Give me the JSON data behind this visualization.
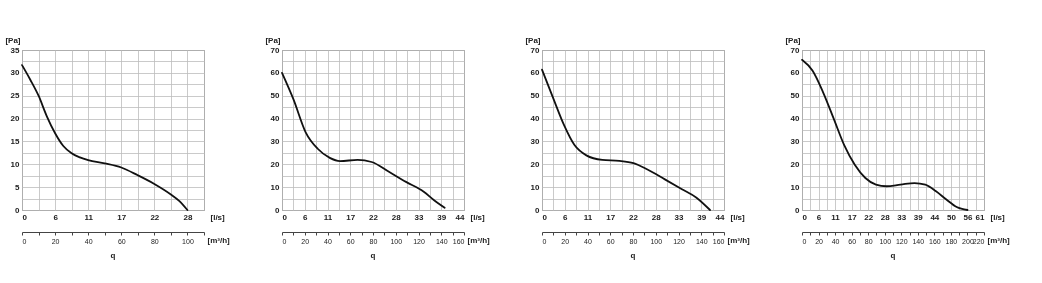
{
  "chart_data": [
    {
      "type": "line",
      "xlabel": "[l/s]",
      "x2label": "[m³/h]",
      "ylabel": "[Pa]",
      "annotations": [
        "q"
      ],
      "grid": true,
      "x": [
        0,
        1.39,
        2.78,
        4.17,
        5.56,
        6.94,
        8.33,
        9.72,
        11.11,
        13.89,
        16.67,
        19.44,
        22.22,
        25,
        26.39,
        27.78
      ],
      "series": [
        {
          "color": "#111111",
          "values": [
            31.7,
            28.5,
            25,
            20.5,
            16.8,
            14,
            12.4,
            11.5,
            10.9,
            10.2,
            9.3,
            7.6,
            5.7,
            3.4,
            2,
            0
          ]
        }
      ],
      "xlim": [
        0,
        30.56
      ],
      "xticks": [
        {
          "value": 0,
          "label": "0"
        },
        {
          "value": 2.78,
          "label": null
        },
        {
          "value": 5.56,
          "label": "6"
        },
        {
          "value": 8.33,
          "label": null
        },
        {
          "value": 11.11,
          "label": "11"
        },
        {
          "value": 13.89,
          "label": null
        },
        {
          "value": 16.67,
          "label": "17"
        },
        {
          "value": 19.44,
          "label": null
        },
        {
          "value": 22.22,
          "label": "22"
        },
        {
          "value": 25,
          "label": null
        },
        {
          "value": 27.78,
          "label": "28"
        },
        {
          "value": 30.56,
          "label": null
        }
      ],
      "x2lim": [
        0,
        110
      ],
      "x2ticks": [
        0,
        {
          "value": 10,
          "label": null
        },
        20,
        {
          "value": 30,
          "label": null
        },
        40,
        {
          "value": 50,
          "label": null
        },
        60,
        {
          "value": 70,
          "label": null
        },
        80,
        {
          "value": 90,
          "label": null
        },
        100,
        {
          "value": 110,
          "label": null
        }
      ],
      "ylim": [
        0,
        35
      ],
      "yticks": [
        {
          "value": 0,
          "label": "0"
        },
        {
          "value": 2.5,
          "label": null
        },
        5,
        {
          "value": 7.5,
          "label": null
        },
        10,
        {
          "value": 12.5,
          "label": null
        },
        15,
        {
          "value": 17.5,
          "label": null
        },
        20,
        {
          "value": 22.5,
          "label": null
        },
        25,
        {
          "value": 27.5,
          "label": null
        },
        30,
        {
          "value": 32.5,
          "label": null
        },
        35
      ]
    },
    {
      "type": "line",
      "xlabel": "[l/s]",
      "x2label": "[m³/h]",
      "ylabel": "[Pa]",
      "annotations": [
        "q"
      ],
      "grid": true,
      "x": [
        0,
        2.78,
        5.78,
        8.72,
        11.67,
        14.17,
        18.47,
        21.89,
        26.11,
        30.28,
        34.61,
        37.14,
        39.72
      ],
      "series": [
        {
          "color": "#111111",
          "values": [
            60,
            48.5,
            34,
            26.8,
            22.8,
            21.4,
            21.9,
            21,
            16.7,
            12.3,
            8,
            4.3,
            1
          ]
        }
      ],
      "xlim": [
        0,
        44.44
      ],
      "xticks": [
        {
          "value": 0,
          "label": "0"
        },
        {
          "value": 2.78,
          "label": null
        },
        {
          "value": 5.56,
          "label": "6"
        },
        {
          "value": 8.33,
          "label": null
        },
        {
          "value": 11.11,
          "label": "11"
        },
        {
          "value": 13.89,
          "label": null
        },
        {
          "value": 16.67,
          "label": "17"
        },
        {
          "value": 19.44,
          "label": null
        },
        {
          "value": 22.22,
          "label": "22"
        },
        {
          "value": 25,
          "label": null
        },
        {
          "value": 27.78,
          "label": "28"
        },
        {
          "value": 30.56,
          "label": null
        },
        {
          "value": 33.33,
          "label": "33"
        },
        {
          "value": 36.11,
          "label": null
        },
        {
          "value": 38.89,
          "label": "39"
        },
        {
          "value": 41.67,
          "label": null
        },
        {
          "value": 44.44,
          "label": "44"
        }
      ],
      "x2lim": [
        0,
        160
      ],
      "x2ticks": [
        0,
        {
          "value": 10,
          "label": null
        },
        20,
        {
          "value": 30,
          "label": null
        },
        40,
        {
          "value": 50,
          "label": null
        },
        60,
        {
          "value": 70,
          "label": null
        },
        80,
        {
          "value": 90,
          "label": null
        },
        100,
        {
          "value": 110,
          "label": null
        },
        120,
        {
          "value": 130,
          "label": null
        },
        140,
        {
          "value": 150,
          "label": null
        },
        160
      ],
      "ylim": [
        0,
        70
      ],
      "yticks": [
        0,
        {
          "value": 5,
          "label": null
        },
        10,
        {
          "value": 15,
          "label": null
        },
        20,
        {
          "value": 25,
          "label": null
        },
        30,
        {
          "value": 35,
          "label": null
        },
        40,
        {
          "value": 45,
          "label": null
        },
        50,
        {
          "value": 55,
          "label": null
        },
        60,
        {
          "value": 65,
          "label": null
        },
        70
      ]
    },
    {
      "type": "line",
      "xlabel": "[l/s]",
      "x2label": "[m³/h]",
      "ylabel": "[Pa]",
      "annotations": [
        "q"
      ],
      "grid": true,
      "x": [
        0,
        2.78,
        5.36,
        7.89,
        10.83,
        14.72,
        18.89,
        22.33,
        25.75,
        30,
        34.17,
        37.64,
        41.03
      ],
      "series": [
        {
          "color": "#111111",
          "values": [
            61.4,
            48.7,
            37.2,
            28.5,
            23.9,
            21.9,
            21.5,
            20.5,
            17.7,
            13.4,
            9.1,
            5.5,
            0
          ]
        }
      ],
      "xlim": [
        0,
        44.44
      ],
      "xticks": [
        {
          "value": 0,
          "label": "0"
        },
        {
          "value": 2.78,
          "label": null
        },
        {
          "value": 5.56,
          "label": "6"
        },
        {
          "value": 8.33,
          "label": null
        },
        {
          "value": 11.11,
          "label": "11"
        },
        {
          "value": 13.89,
          "label": null
        },
        {
          "value": 16.67,
          "label": "17"
        },
        {
          "value": 19.44,
          "label": null
        },
        {
          "value": 22.22,
          "label": "22"
        },
        {
          "value": 25,
          "label": null
        },
        {
          "value": 27.78,
          "label": "28"
        },
        {
          "value": 30.56,
          "label": null
        },
        {
          "value": 33.33,
          "label": "33"
        },
        {
          "value": 36.11,
          "label": null
        },
        {
          "value": 38.89,
          "label": "39"
        },
        {
          "value": 41.67,
          "label": null
        },
        {
          "value": 44.44,
          "label": "44"
        }
      ],
      "x2lim": [
        0,
        160
      ],
      "x2ticks": [
        0,
        {
          "value": 10,
          "label": null
        },
        20,
        {
          "value": 30,
          "label": null
        },
        40,
        {
          "value": 50,
          "label": null
        },
        60,
        {
          "value": 70,
          "label": null
        },
        80,
        {
          "value": 90,
          "label": null
        },
        100,
        {
          "value": 110,
          "label": null
        },
        120,
        {
          "value": 130,
          "label": null
        },
        140,
        {
          "value": 150,
          "label": null
        },
        160
      ],
      "ylim": [
        0,
        70
      ],
      "yticks": [
        0,
        {
          "value": 5,
          "label": null
        },
        10,
        {
          "value": 15,
          "label": null
        },
        20,
        {
          "value": 25,
          "label": null
        },
        30,
        {
          "value": 35,
          "label": null
        },
        40,
        {
          "value": 45,
          "label": null
        },
        50,
        {
          "value": 55,
          "label": null
        },
        60,
        {
          "value": 65,
          "label": null
        },
        70
      ]
    },
    {
      "type": "line",
      "xlabel": "[l/s]",
      "x2label": "[m³/h]",
      "ylabel": "[Pa]",
      "annotations": [
        "q"
      ],
      "grid": true,
      "x": [
        0,
        3.56,
        7.08,
        10.64,
        14.17,
        17.72,
        21.28,
        24.83,
        28.33,
        33.06,
        37.78,
        41.39,
        45,
        48.47,
        51.94,
        55.56
      ],
      "series": [
        {
          "color": "#111111",
          "values": [
            65.7,
            60.9,
            51.5,
            40,
            28.4,
            19.8,
            14,
            11.1,
            10.4,
            11.1,
            11.8,
            11.1,
            8.2,
            4.6,
            1.3,
            0
          ]
        }
      ],
      "xlim": [
        0,
        61.11
      ],
      "xticks": [
        {
          "value": 0,
          "label": "0"
        },
        {
          "value": 2.78,
          "label": null
        },
        {
          "value": 5.56,
          "label": "6"
        },
        {
          "value": 8.33,
          "label": null
        },
        {
          "value": 11.11,
          "label": "11"
        },
        {
          "value": 13.89,
          "label": null
        },
        {
          "value": 16.67,
          "label": "17"
        },
        {
          "value": 19.44,
          "label": null
        },
        {
          "value": 22.22,
          "label": "22"
        },
        {
          "value": 25,
          "label": null
        },
        {
          "value": 27.78,
          "label": "28"
        },
        {
          "value": 30.56,
          "label": null
        },
        {
          "value": 33.33,
          "label": "33"
        },
        {
          "value": 36.11,
          "label": null
        },
        {
          "value": 38.89,
          "label": "39"
        },
        {
          "value": 41.67,
          "label": null
        },
        {
          "value": 44.44,
          "label": "44"
        },
        {
          "value": 47.22,
          "label": null
        },
        50,
        {
          "value": 52.78,
          "label": null
        },
        {
          "value": 55.56,
          "label": "56"
        },
        {
          "value": 58.33,
          "label": null
        },
        {
          "value": 61.11,
          "label": "61"
        }
      ],
      "x2lim": [
        0,
        220
      ],
      "x2ticks": [
        0,
        {
          "value": 10,
          "label": null
        },
        20,
        {
          "value": 30,
          "label": null
        },
        40,
        {
          "value": 50,
          "label": null
        },
        60,
        {
          "value": 70,
          "label": null
        },
        80,
        {
          "value": 90,
          "label": null
        },
        100,
        {
          "value": 110,
          "label": null
        },
        120,
        {
          "value": 130,
          "label": null
        },
        140,
        {
          "value": 150,
          "label": null
        },
        160,
        {
          "value": 170,
          "label": null
        },
        180,
        {
          "value": 190,
          "label": null
        },
        200,
        {
          "value": 210,
          "label": null
        },
        220
      ],
      "ylim": [
        0,
        70
      ],
      "yticks": [
        0,
        {
          "value": 5,
          "label": null
        },
        10,
        {
          "value": 15,
          "label": null
        },
        20,
        {
          "value": 25,
          "label": null
        },
        30,
        {
          "value": 35,
          "label": null
        },
        40,
        {
          "value": 45,
          "label": null
        },
        50,
        {
          "value": 55,
          "label": null
        },
        60,
        {
          "value": 65,
          "label": null
        },
        70
      ]
    }
  ]
}
